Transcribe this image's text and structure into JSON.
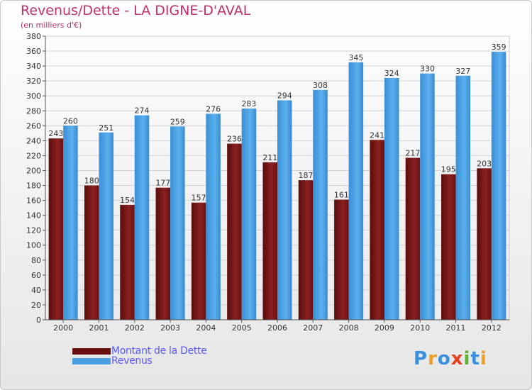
{
  "chart_data": {
    "type": "bar",
    "title": "Revenus/Dette - LA DIGNE-D'AVAL",
    "subtitle": "(en milliers d'€)",
    "categories": [
      "2000",
      "2001",
      "2002",
      "2003",
      "2004",
      "2005",
      "2006",
      "2007",
      "2008",
      "2009",
      "2010",
      "2011",
      "2012"
    ],
    "series": [
      {
        "name": "Montant de la Dette",
        "color": "#7a1616",
        "values": [
          243,
          180,
          154,
          177,
          157,
          236,
          211,
          187,
          161,
          241,
          217,
          195,
          203
        ]
      },
      {
        "name": "Revenus",
        "color": "#4aa0e0",
        "values": [
          260,
          251,
          274,
          259,
          276,
          283,
          294,
          308,
          345,
          324,
          330,
          327,
          359
        ]
      }
    ],
    "ylim": [
      0,
      380
    ],
    "ytick_step": 20,
    "grid": true,
    "legend_position": "bottom-left"
  },
  "logo": {
    "letters": [
      "P",
      "r",
      "o",
      "x",
      "i",
      "t",
      "i"
    ],
    "colors": [
      "#3a8fe0",
      "#f0a020",
      "#3a8fe0",
      "#e84020",
      "#60b030",
      "#3a8fe0",
      "#f0a020"
    ]
  }
}
